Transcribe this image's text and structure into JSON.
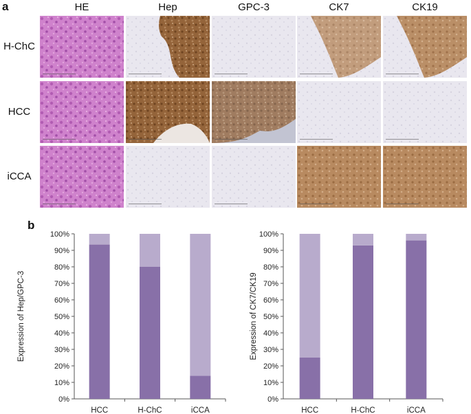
{
  "panel_a": {
    "letter": "a",
    "columns": [
      "HE",
      "Hep",
      "GPC-3",
      "CK7",
      "CK19"
    ],
    "rows": [
      "H-ChC",
      "HCC",
      "iCCA"
    ],
    "tiles": [
      [
        "he",
        "hep-partial",
        "ihc-neg",
        "ck7-partial",
        "ck19-partial"
      ],
      [
        "he",
        "hep-pos",
        "gpc3-pos",
        "ihc-neg",
        "ihc-neg"
      ],
      [
        "he",
        "ihc-neg",
        "ihc-neg",
        "ck-pos",
        "ck-pos"
      ]
    ],
    "colors": {
      "he": "#c874c4",
      "ihc_pos": "#8a5a2c",
      "ihc_neg": "#e8e6ee"
    }
  },
  "panel_b": {
    "letter": "b",
    "colors": {
      "dark": "#8870a8",
      "light": "#b8abcc"
    },
    "chart_data": [
      {
        "type": "bar",
        "stacked": true,
        "categories": [
          "HCC",
          "H-ChC",
          "iCCA"
        ],
        "series": [
          {
            "values": [
              93.5,
              80,
              14
            ]
          },
          {
            "values": [
              6.5,
              20,
              86
            ]
          }
        ],
        "ylabel": "Expression of Hep/GPC-3",
        "ylim": [
          0,
          100
        ],
        "yticks": [
          "0%",
          "10%",
          "20%",
          "30%",
          "40%",
          "50%",
          "60%",
          "70%",
          "80%",
          "90%",
          "100%"
        ]
      },
      {
        "type": "bar",
        "stacked": true,
        "categories": [
          "HCC",
          "H-ChC",
          "iCCA"
        ],
        "series": [
          {
            "values": [
              25,
              93,
              96
            ]
          },
          {
            "values": [
              75,
              7,
              4
            ]
          }
        ],
        "ylabel": "Expression of CK7/CK19",
        "ylim": [
          0,
          100
        ],
        "yticks": [
          "0%",
          "10%",
          "20%",
          "30%",
          "40%",
          "50%",
          "60%",
          "70%",
          "80%",
          "90%",
          "100%"
        ]
      }
    ]
  }
}
